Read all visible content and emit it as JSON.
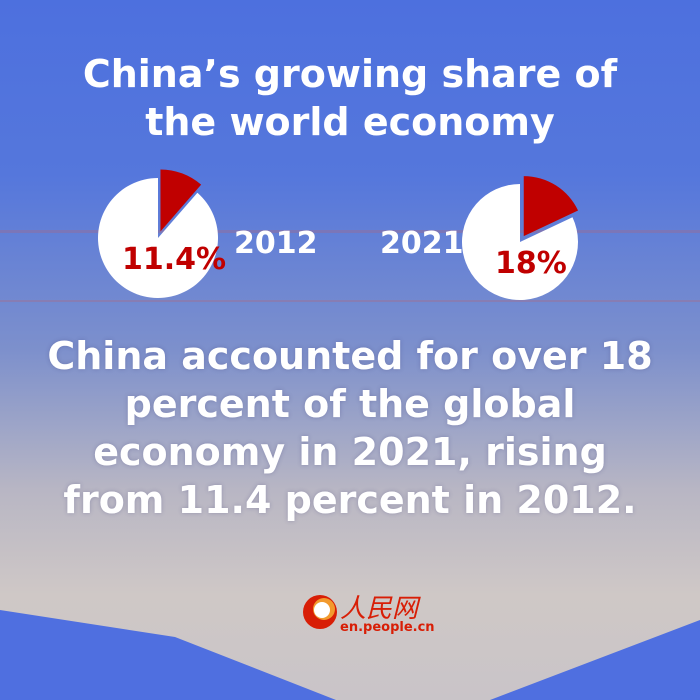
{
  "title": "China’s growing share of the world economy",
  "title_lines": [
    "China’s growing share of",
    "the world economy"
  ],
  "chart_data": [
    {
      "type": "pie",
      "category": "2012",
      "values": [
        11.4,
        88.6
      ],
      "labels": [
        "11.4%",
        ""
      ],
      "year_label": "2012",
      "slice_color": "#c00000",
      "rest_color": "#ffffff"
    },
    {
      "type": "pie",
      "category": "2021",
      "values": [
        18,
        82
      ],
      "labels": [
        "18%",
        ""
      ],
      "year_label": "2021",
      "slice_color": "#c00000",
      "rest_color": "#ffffff"
    }
  ],
  "body_lines": [
    "China accounted for over 18",
    "percent of the global",
    "economy in 2021, rising",
    "from 11.4 percent in 2012."
  ],
  "logo": {
    "cn": "人民网",
    "en": "en.people.cn"
  },
  "colors": {
    "background": "#4d70de",
    "accent": "#c00000",
    "text": "#ffffff"
  }
}
